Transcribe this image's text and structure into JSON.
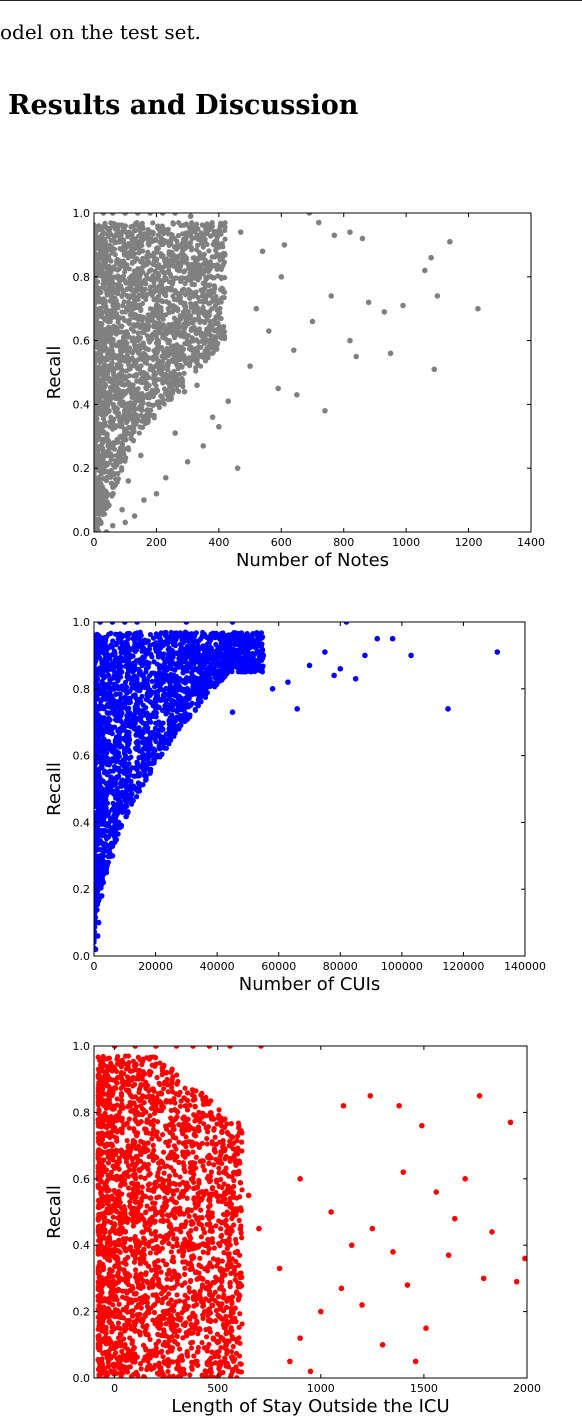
{
  "page": {
    "prev_text": "odel on the test set.",
    "heading": "Results and Discussion"
  },
  "chart_data": [
    {
      "type": "scatter",
      "color": "#808080",
      "xlabel": "Number of Notes",
      "ylabel": "Recall",
      "xlim": [
        0,
        1400
      ],
      "ylim": [
        0,
        1.0
      ],
      "xticks": [
        0,
        200,
        400,
        600,
        800,
        1000,
        1200,
        1400
      ],
      "yticks": [
        0.0,
        0.2,
        0.4,
        0.6,
        0.8,
        1.0
      ],
      "grid": false,
      "points": [
        [
          30,
          1.0
        ],
        [
          60,
          1.0
        ],
        [
          100,
          1.0
        ],
        [
          140,
          1.0
        ],
        [
          180,
          1.0
        ],
        [
          220,
          1.0
        ],
        [
          260,
          1.0
        ],
        [
          310,
          0.99
        ],
        [
          470,
          0.94
        ],
        [
          690,
          1.0
        ],
        [
          720,
          0.97
        ],
        [
          770,
          0.93
        ],
        [
          820,
          0.94
        ],
        [
          860,
          0.92
        ],
        [
          1080,
          0.86
        ],
        [
          1140,
          0.91
        ],
        [
          1230,
          0.7
        ],
        [
          1060,
          0.82
        ],
        [
          1100,
          0.74
        ],
        [
          990,
          0.71
        ],
        [
          930,
          0.69
        ],
        [
          880,
          0.72
        ],
        [
          820,
          0.6
        ],
        [
          840,
          0.55
        ],
        [
          950,
          0.56
        ],
        [
          1090,
          0.51
        ],
        [
          740,
          0.38
        ],
        [
          650,
          0.43
        ],
        [
          590,
          0.45
        ],
        [
          460,
          0.2
        ],
        [
          400,
          0.33
        ],
        [
          350,
          0.27
        ],
        [
          300,
          0.22
        ],
        [
          260,
          0.31
        ],
        [
          230,
          0.17
        ],
        [
          200,
          0.12
        ],
        [
          160,
          0.1
        ],
        [
          130,
          0.05
        ],
        [
          100,
          0.03
        ],
        [
          90,
          0.07
        ],
        [
          60,
          0.02
        ],
        [
          40,
          0.0
        ],
        [
          110,
          0.16
        ],
        [
          150,
          0.24
        ],
        [
          70,
          0.55
        ],
        [
          520,
          0.7
        ],
        [
          560,
          0.63
        ],
        [
          600,
          0.8
        ],
        [
          640,
          0.57
        ],
        [
          700,
          0.66
        ],
        [
          760,
          0.74
        ],
        [
          610,
          0.9
        ],
        [
          540,
          0.88
        ],
        [
          500,
          0.52
        ],
        [
          430,
          0.41
        ],
        [
          380,
          0.36
        ],
        [
          330,
          0.46
        ],
        [
          290,
          0.44
        ]
      ]
    },
    {
      "type": "scatter",
      "color": "#0000ff",
      "xlabel": "Number of CUIs",
      "ylabel": "Recall",
      "xlim": [
        0,
        140000
      ],
      "ylim": [
        0,
        1.0
      ],
      "xticks": [
        0,
        20000,
        40000,
        60000,
        80000,
        100000,
        120000,
        140000
      ],
      "yticks": [
        0.0,
        0.2,
        0.4,
        0.6,
        0.8,
        1.0
      ],
      "grid": false,
      "points": [
        [
          2000,
          1.0
        ],
        [
          6000,
          1.0
        ],
        [
          10000,
          1.0
        ],
        [
          14000,
          1.0
        ],
        [
          30000,
          1.0
        ],
        [
          45000,
          1.0
        ],
        [
          82000,
          1.0
        ],
        [
          97000,
          0.95
        ],
        [
          92000,
          0.95
        ],
        [
          103000,
          0.9
        ],
        [
          131000,
          0.91
        ],
        [
          115000,
          0.74
        ],
        [
          80000,
          0.86
        ],
        [
          78000,
          0.84
        ],
        [
          85000,
          0.83
        ],
        [
          63000,
          0.82
        ],
        [
          66000,
          0.74
        ],
        [
          58000,
          0.8
        ],
        [
          45000,
          0.73
        ],
        [
          30000,
          0.75
        ],
        [
          25000,
          0.69
        ],
        [
          18000,
          0.62
        ],
        [
          14000,
          0.58
        ],
        [
          12000,
          0.51
        ],
        [
          9000,
          0.45
        ],
        [
          7000,
          0.38
        ],
        [
          5000,
          0.33
        ],
        [
          4000,
          0.25
        ],
        [
          2500,
          0.18
        ],
        [
          1500,
          0.1
        ],
        [
          500,
          0.02
        ],
        [
          1200,
          0.06
        ],
        [
          3000,
          0.22
        ],
        [
          6000,
          0.3
        ],
        [
          8000,
          0.4
        ],
        [
          11000,
          0.48
        ],
        [
          16000,
          0.56
        ],
        [
          21000,
          0.66
        ],
        [
          34000,
          0.79
        ],
        [
          40000,
          0.82
        ],
        [
          50000,
          0.86
        ],
        [
          55000,
          0.9
        ],
        [
          70000,
          0.87
        ],
        [
          75000,
          0.91
        ],
        [
          88000,
          0.9
        ]
      ]
    },
    {
      "type": "scatter",
      "color": "#ff0000",
      "xlabel": "Length of Stay Outside the ICU",
      "ylabel": "Recall",
      "xlim": [
        -100,
        2000
      ],
      "ylim": [
        0,
        1.0
      ],
      "xticks": [
        0,
        500,
        1000,
        1500,
        2000
      ],
      "yticks": [
        0.0,
        0.2,
        0.4,
        0.6,
        0.8,
        1.0
      ],
      "grid": false,
      "points": [
        [
          0,
          1.0
        ],
        [
          100,
          1.0
        ],
        [
          200,
          1.0
        ],
        [
          300,
          1.0
        ],
        [
          380,
          1.0
        ],
        [
          460,
          1.0
        ],
        [
          560,
          1.0
        ],
        [
          710,
          1.0
        ],
        [
          1110,
          0.82
        ],
        [
          1240,
          0.85
        ],
        [
          1380,
          0.82
        ],
        [
          1490,
          0.76
        ],
        [
          1770,
          0.85
        ],
        [
          1920,
          0.77
        ],
        [
          1700,
          0.6
        ],
        [
          1560,
          0.56
        ],
        [
          1650,
          0.48
        ],
        [
          1830,
          0.44
        ],
        [
          1950,
          0.29
        ],
        [
          1990,
          0.36
        ],
        [
          1790,
          0.3
        ],
        [
          1620,
          0.37
        ],
        [
          1510,
          0.15
        ],
        [
          1460,
          0.05
        ],
        [
          1300,
          0.1
        ],
        [
          1200,
          0.22
        ],
        [
          1100,
          0.27
        ],
        [
          1000,
          0.2
        ],
        [
          900,
          0.12
        ],
        [
          800,
          0.33
        ],
        [
          700,
          0.45
        ],
        [
          650,
          0.55
        ],
        [
          600,
          0.62
        ],
        [
          560,
          0.7
        ],
        [
          520,
          0.74
        ],
        [
          480,
          0.78
        ],
        [
          900,
          0.6
        ],
        [
          1050,
          0.5
        ],
        [
          1150,
          0.4
        ],
        [
          1350,
          0.38
        ],
        [
          1420,
          0.28
        ],
        [
          850,
          0.05
        ],
        [
          950,
          0.02
        ],
        [
          1250,
          0.45
        ],
        [
          1400,
          0.62
        ]
      ]
    }
  ]
}
